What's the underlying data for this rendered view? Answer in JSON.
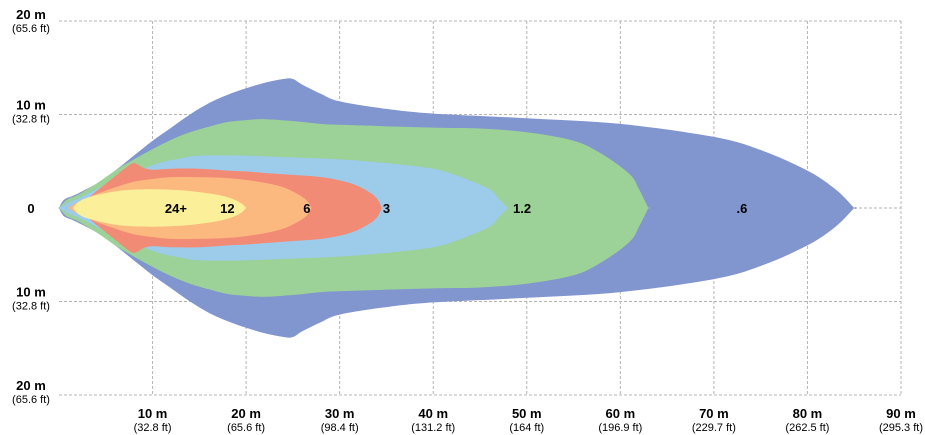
{
  "chart_data": {
    "type": "area",
    "title": "",
    "xlabel": "",
    "ylabel": "",
    "xlim": [
      0,
      90
    ],
    "ylim": [
      -20,
      20
    ],
    "grid": true,
    "x_ticks": [
      {
        "value": 10,
        "label": "10 m",
        "sub": "(32.8 ft)"
      },
      {
        "value": 20,
        "label": "20 m",
        "sub": "(65.6 ft)"
      },
      {
        "value": 30,
        "label": "30 m",
        "sub": "(98.4 ft)"
      },
      {
        "value": 40,
        "label": "40 m",
        "sub": "(131.2 ft)"
      },
      {
        "value": 50,
        "label": "50 m",
        "sub": "(164 ft)"
      },
      {
        "value": 60,
        "label": "60 m",
        "sub": "(196.9 ft)"
      },
      {
        "value": 70,
        "label": "70 m",
        "sub": "(229.7 ft)"
      },
      {
        "value": 80,
        "label": "80 m",
        "sub": "(262.5 ft)"
      },
      {
        "value": 90,
        "label": "90 m",
        "sub": "(295.3 ft)"
      }
    ],
    "y_ticks": [
      {
        "value": 20,
        "label": "20 m",
        "sub": "(65.6 ft)"
      },
      {
        "value": 10,
        "label": "10 m",
        "sub": "(32.8 ft)"
      },
      {
        "value": 0,
        "label": "0",
        "sub": ""
      },
      {
        "value": -10,
        "label": "10 m",
        "sub": "(32.8 ft)"
      },
      {
        "value": -20,
        "label": "20 m",
        "sub": "(65.6 ft)"
      }
    ],
    "series": [
      {
        "value": ".6",
        "color": "#8195ce",
        "label_at": [
          73,
          0
        ],
        "profile": [
          [
            0,
            0
          ],
          [
            0.3,
            0.6
          ],
          [
            0.7,
            1.0
          ],
          [
            1.5,
            1.3
          ],
          [
            2.5,
            1.8
          ],
          [
            4,
            2.6
          ],
          [
            6,
            4.0
          ],
          [
            8,
            5.6
          ],
          [
            10,
            7.2
          ],
          [
            12,
            8.6
          ],
          [
            14,
            10.0
          ],
          [
            16,
            11.2
          ],
          [
            18,
            12.1
          ],
          [
            20,
            12.8
          ],
          [
            22,
            13.4
          ],
          [
            24,
            13.8
          ],
          [
            25,
            13.8
          ],
          [
            26,
            13.2
          ],
          [
            28,
            12.2
          ],
          [
            30,
            11.4
          ],
          [
            35,
            10.6
          ],
          [
            40,
            10.1
          ],
          [
            50,
            9.6
          ],
          [
            60,
            9.0
          ],
          [
            70,
            7.6
          ],
          [
            75,
            6.2
          ],
          [
            80,
            4.0
          ],
          [
            83,
            2.0
          ],
          [
            85,
            0
          ]
        ]
      },
      {
        "value": "1.2",
        "color": "#9cd197",
        "label_at": [
          49.5,
          0
        ],
        "profile": [
          [
            0,
            0
          ],
          [
            0.5,
            0.6
          ],
          [
            1,
            1.0
          ],
          [
            2,
            1.4
          ],
          [
            4,
            2.6
          ],
          [
            6,
            4.0
          ],
          [
            8,
            5.2
          ],
          [
            10,
            6.3
          ],
          [
            12,
            7.3
          ],
          [
            14,
            8.1
          ],
          [
            16,
            8.7
          ],
          [
            18,
            9.2
          ],
          [
            20,
            9.4
          ],
          [
            22,
            9.5
          ],
          [
            25,
            9.3
          ],
          [
            28,
            9.0
          ],
          [
            30,
            8.9
          ],
          [
            40,
            8.6
          ],
          [
            45,
            8.5
          ],
          [
            50,
            8.1
          ],
          [
            55,
            7.2
          ],
          [
            58,
            5.8
          ],
          [
            61,
            3.6
          ],
          [
            62,
            2.0
          ],
          [
            63,
            0
          ]
        ]
      },
      {
        "value": "3",
        "color": "#9dcbea",
        "label_at": [
          35,
          0
        ],
        "profile": [
          [
            0,
            0
          ],
          [
            1,
            0.6
          ],
          [
            2,
            1.0
          ],
          [
            3,
            1.5
          ],
          [
            5,
            2.5
          ],
          [
            7,
            3.3
          ],
          [
            9,
            4.2
          ],
          [
            11,
            4.9
          ],
          [
            13,
            5.3
          ],
          [
            15,
            5.6
          ],
          [
            20,
            5.6
          ],
          [
            25,
            5.4
          ],
          [
            30,
            5.2
          ],
          [
            35,
            4.8
          ],
          [
            40,
            4.2
          ],
          [
            43,
            3.3
          ],
          [
            46,
            2.0
          ],
          [
            47,
            1.0
          ],
          [
            48,
            0
          ]
        ]
      },
      {
        "value": "6",
        "color": "#f28b75",
        "label_at": [
          26.5,
          0
        ],
        "profile": [
          [
            1,
            0
          ],
          [
            2,
            0.6
          ],
          [
            3,
            1.0
          ],
          [
            4,
            1.8
          ],
          [
            5,
            2.6
          ],
          [
            6,
            3.4
          ],
          [
            7,
            4.2
          ],
          [
            8,
            4.8
          ],
          [
            9,
            4.3
          ],
          [
            10,
            4.1
          ],
          [
            12,
            4.2
          ],
          [
            15,
            4.2
          ],
          [
            18,
            4.0
          ],
          [
            20,
            3.9
          ],
          [
            24,
            3.6
          ],
          [
            28,
            3.3
          ],
          [
            31,
            2.7
          ],
          [
            33,
            1.8
          ],
          [
            34,
            1.0
          ],
          [
            34.5,
            0
          ]
        ]
      },
      {
        "value": "12",
        "color": "#fbb87f",
        "label_at": [
          18,
          0
        ],
        "profile": [
          [
            1,
            0
          ],
          [
            2,
            0.6
          ],
          [
            3,
            1.0
          ],
          [
            4,
            1.5
          ],
          [
            6,
            2.2
          ],
          [
            8,
            2.8
          ],
          [
            10,
            3.1
          ],
          [
            12,
            3.3
          ],
          [
            15,
            3.3
          ],
          [
            18,
            3.2
          ],
          [
            20,
            3.0
          ],
          [
            22,
            2.7
          ],
          [
            24,
            2.2
          ],
          [
            25.5,
            1.5
          ],
          [
            26.5,
            0.8
          ],
          [
            27,
            0
          ]
        ]
      },
      {
        "value": "24+",
        "color": "#fbef99",
        "label_at": [
          12.5,
          0
        ],
        "profile": [
          [
            1.5,
            0
          ],
          [
            2,
            0.6
          ],
          [
            3,
            1.1
          ],
          [
            5,
            1.6
          ],
          [
            7,
            1.9
          ],
          [
            10,
            2.0
          ],
          [
            13,
            1.9
          ],
          [
            15,
            1.7
          ],
          [
            17,
            1.4
          ],
          [
            18.5,
            1.0
          ],
          [
            19.5,
            0.5
          ],
          [
            20,
            0
          ]
        ]
      }
    ]
  }
}
